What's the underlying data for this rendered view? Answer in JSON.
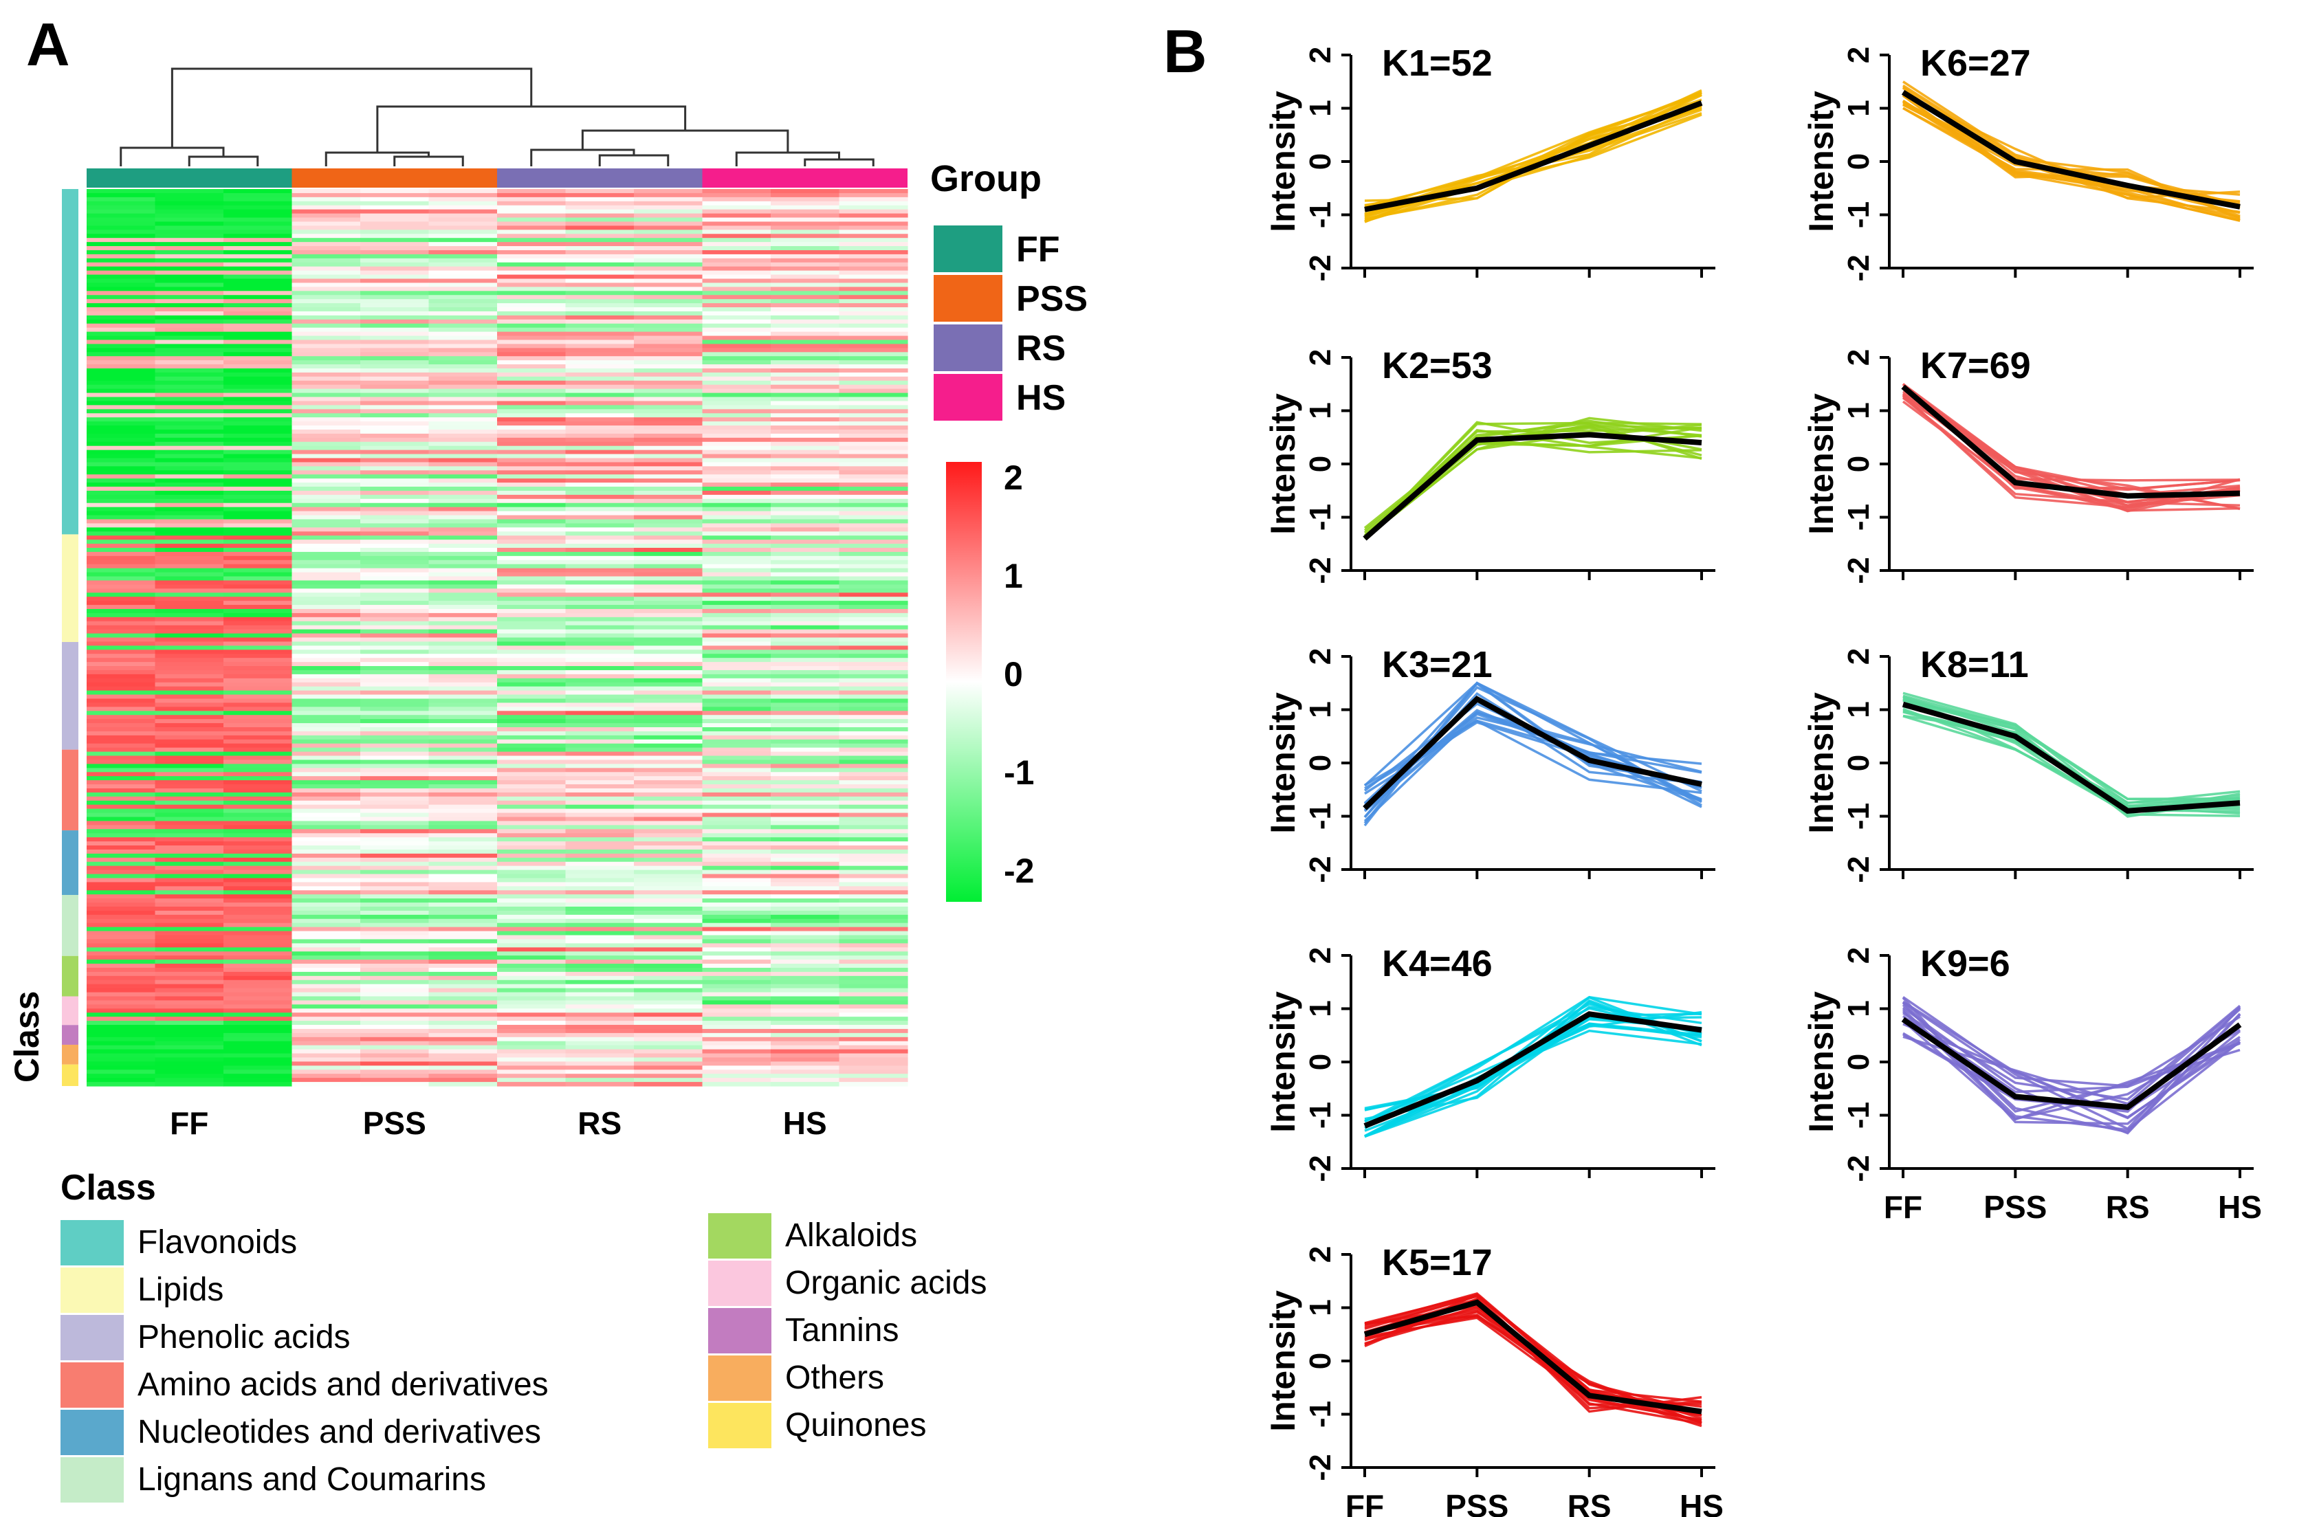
{
  "figure": {
    "panel_a_label": "A",
    "panel_b_label": "B"
  },
  "heatmap": {
    "groups": [
      "FF",
      "PSS",
      "RS",
      "HS"
    ],
    "group_colors": [
      "#1e9e81",
      "#f06517",
      "#7a6fb4",
      "#f51e8c"
    ],
    "group_legend_title": "Group",
    "class_axis_label": "Class",
    "colorbar": {
      "ticks": [
        "2",
        "1",
        "0",
        "-1",
        "-2"
      ],
      "low_color": "#00ee33",
      "mid_color": "#ffffff",
      "high_color": "#ff1a1a"
    },
    "class_legend_title": "Class",
    "classes": [
      {
        "name": "Flavonoids",
        "color": "#5fcec4"
      },
      {
        "name": "Lipids",
        "color": "#fbf9b4"
      },
      {
        "name": "Phenolic acids",
        "color": "#bdb9db"
      },
      {
        "name": "Amino acids and derivatives",
        "color": "#f87d70"
      },
      {
        "name": "Nucleotides and derivatives",
        "color": "#5aa8cc"
      },
      {
        "name": "Lignans and Coumarins",
        "color": "#c5ecc8"
      },
      {
        "name": "Alkaloids",
        "color": "#a3d860"
      },
      {
        "name": "Organic acids",
        "color": "#fbc7de"
      },
      {
        "name": "Tannins",
        "color": "#c27cc0"
      },
      {
        "name": "Others",
        "color": "#f8ad5e"
      },
      {
        "name": "Quinones",
        "color": "#fde55e"
      }
    ],
    "class_strip_fractions": [
      0.385,
      0.12,
      0.12,
      0.09,
      0.072,
      0.068,
      0.045,
      0.032,
      0.022,
      0.022,
      0.024
    ]
  },
  "chart_data": [
    {
      "type": "line",
      "title": "K1=52",
      "ylabel": "Intensity",
      "categories": [
        "FF",
        "PSS",
        "RS",
        "HS"
      ],
      "ylim": [
        -2,
        2
      ],
      "yticks": [
        "-2",
        "-1",
        "0",
        "1",
        "2"
      ],
      "color": "#f2b600",
      "mean": [
        -0.9,
        -0.5,
        0.3,
        1.1
      ],
      "spread": 0.25
    },
    {
      "type": "line",
      "title": "K2=53",
      "ylabel": "Intensity",
      "categories": [
        "FF",
        "PSS",
        "RS",
        "HS"
      ],
      "ylim": [
        -2,
        2
      ],
      "yticks": [
        "-2",
        "-1",
        "0",
        "1",
        "2"
      ],
      "color": "#8fd11b",
      "mean": [
        -1.4,
        0.45,
        0.55,
        0.4
      ],
      "spread": 0.35
    },
    {
      "type": "line",
      "title": "K3=21",
      "ylabel": "Intensity",
      "categories": [
        "FF",
        "PSS",
        "RS",
        "HS"
      ],
      "ylim": [
        -2,
        2
      ],
      "yticks": [
        "-2",
        "-1",
        "0",
        "1",
        "2"
      ],
      "color": "#4a90e2",
      "mean": [
        -0.85,
        1.2,
        0.05,
        -0.4
      ],
      "spread": 0.45
    },
    {
      "type": "line",
      "title": "K4=46",
      "ylabel": "Intensity",
      "categories": [
        "FF",
        "PSS",
        "RS",
        "HS"
      ],
      "ylim": [
        -2,
        2
      ],
      "yticks": [
        "-2",
        "-1",
        "0",
        "1",
        "2"
      ],
      "color": "#00d4e8",
      "mean": [
        -1.2,
        -0.35,
        0.9,
        0.6
      ],
      "spread": 0.35
    },
    {
      "type": "line",
      "title": "K5=17",
      "ylabel": "Intensity",
      "categories": [
        "FF",
        "PSS",
        "RS",
        "HS"
      ],
      "ylim": [
        -2,
        2
      ],
      "yticks": [
        "-2",
        "-1",
        "0",
        "1",
        "2"
      ],
      "color": "#e81212",
      "mean": [
        0.5,
        1.1,
        -0.65,
        -0.95
      ],
      "spread": 0.3
    },
    {
      "type": "line",
      "title": "K6=27",
      "ylabel": "Intensity",
      "categories": [
        "FF",
        "PSS",
        "RS",
        "HS"
      ],
      "ylim": [
        -2,
        2
      ],
      "yticks": [
        "-2",
        "-1",
        "0",
        "1",
        "2"
      ],
      "color": "#f5a70a",
      "mean": [
        1.3,
        0.0,
        -0.45,
        -0.85
      ],
      "spread": 0.3
    },
    {
      "type": "line",
      "title": "K7=69",
      "ylabel": "Intensity",
      "categories": [
        "FF",
        "PSS",
        "RS",
        "HS"
      ],
      "ylim": [
        -2,
        2
      ],
      "yticks": [
        "-2",
        "-1",
        "0",
        "1",
        "2"
      ],
      "color": "#ef5a5a",
      "mean": [
        1.45,
        -0.35,
        -0.6,
        -0.55
      ],
      "spread": 0.3
    },
    {
      "type": "line",
      "title": "K8=11",
      "ylabel": "Intensity",
      "categories": [
        "FF",
        "PSS",
        "RS",
        "HS"
      ],
      "ylim": [
        -2,
        2
      ],
      "yticks": [
        "-2",
        "-1",
        "0",
        "1",
        "2"
      ],
      "color": "#5ad89a",
      "mean": [
        1.1,
        0.5,
        -0.9,
        -0.75
      ],
      "spread": 0.25
    },
    {
      "type": "line",
      "title": "K9=6",
      "ylabel": "Intensity",
      "categories": [
        "FF",
        "PSS",
        "RS",
        "HS"
      ],
      "ylim": [
        -2,
        2
      ],
      "yticks": [
        "-2",
        "-1",
        "0",
        "1",
        "2"
      ],
      "color": "#7b6ed0",
      "mean": [
        0.8,
        -0.65,
        -0.85,
        0.7
      ],
      "spread": 0.5
    }
  ]
}
